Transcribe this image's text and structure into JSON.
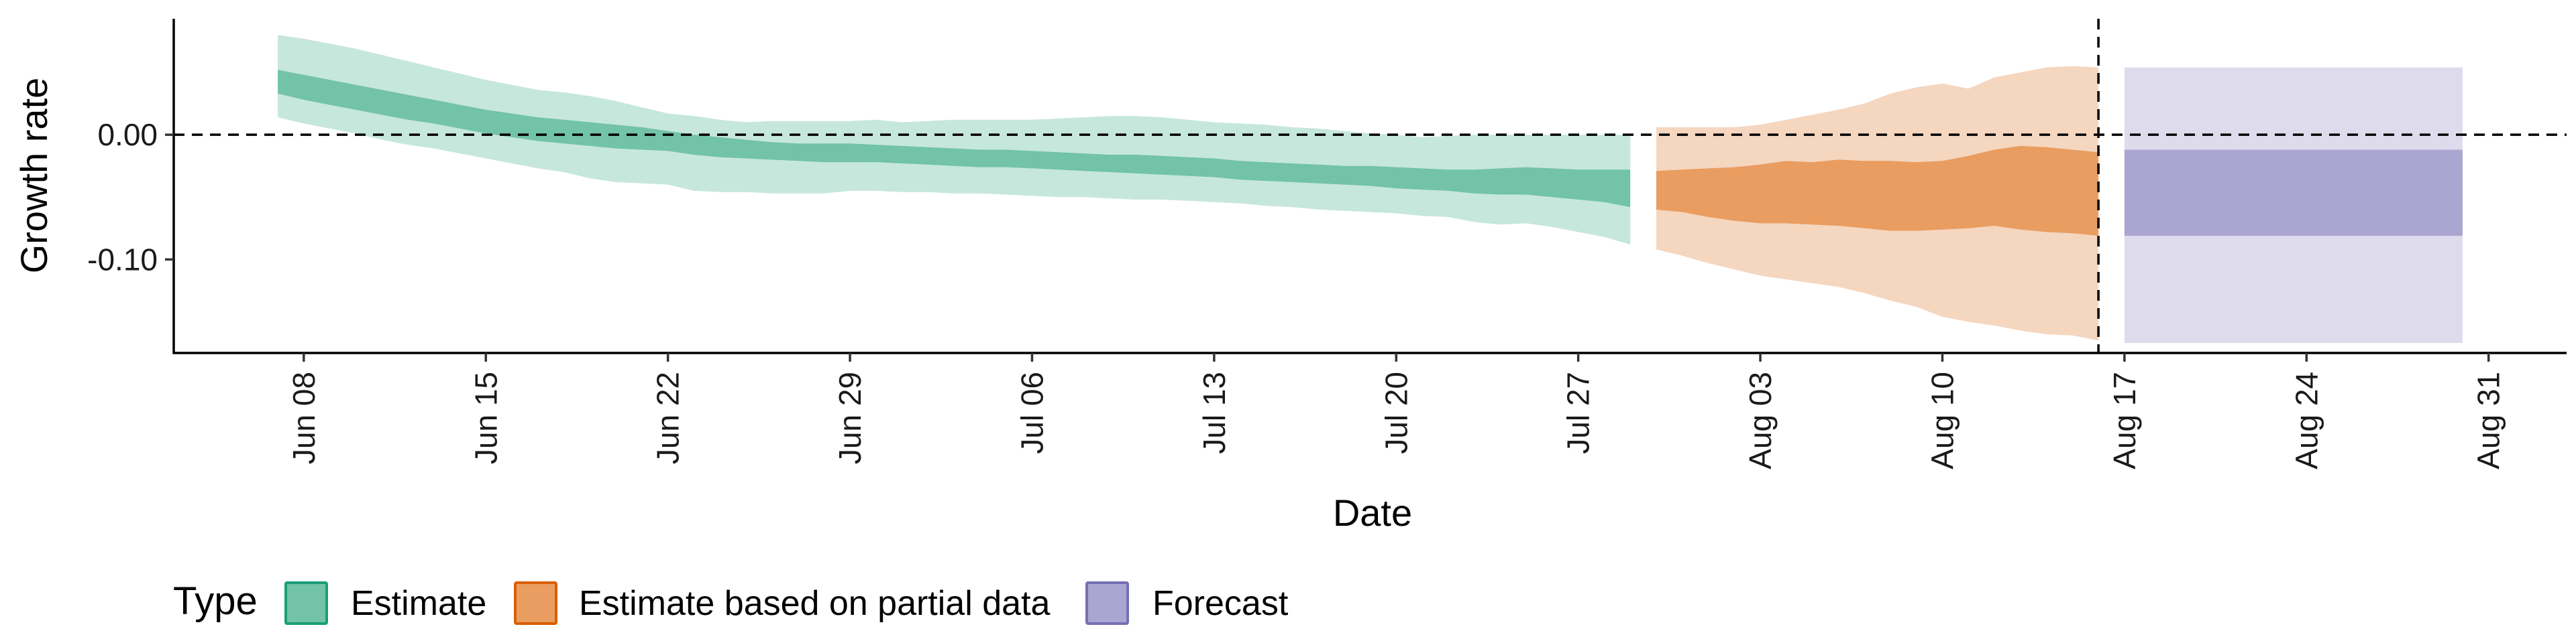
{
  "chart_data": {
    "type": "area",
    "xlabel": "Date",
    "ylabel": "Growth rate",
    "ylim": [
      -0.175,
      0.093
    ],
    "yticks": [
      {
        "value": 0.0,
        "label": "0.00"
      },
      {
        "value": -0.1,
        "label": "-0.10"
      }
    ],
    "xlim": [
      "2020-06-03",
      "2020-09-03"
    ],
    "xticks": [
      {
        "date": "2020-06-08",
        "label": "Jun 08"
      },
      {
        "date": "2020-06-15",
        "label": "Jun 15"
      },
      {
        "date": "2020-06-22",
        "label": "Jun 22"
      },
      {
        "date": "2020-06-29",
        "label": "Jun 29"
      },
      {
        "date": "2020-07-06",
        "label": "Jul 06"
      },
      {
        "date": "2020-07-13",
        "label": "Jul 13"
      },
      {
        "date": "2020-07-20",
        "label": "Jul 20"
      },
      {
        "date": "2020-07-27",
        "label": "Jul 27"
      },
      {
        "date": "2020-08-03",
        "label": "Aug 03"
      },
      {
        "date": "2020-08-10",
        "label": "Aug 10"
      },
      {
        "date": "2020-08-17",
        "label": "Aug 17"
      },
      {
        "date": "2020-08-24",
        "label": "Aug 24"
      },
      {
        "date": "2020-08-31",
        "label": "Aug 31"
      }
    ],
    "reference_lines": {
      "hline_y": 0.0,
      "vline_date": "2020-08-16"
    },
    "legend": {
      "title": "Type",
      "position": "bottom",
      "entries": [
        {
          "label": "Estimate",
          "fill": "#72c3a7",
          "border": "#1b9e77"
        },
        {
          "label": "Estimate based on partial data",
          "fill": "#e99d60",
          "border": "#d95f02"
        },
        {
          "label": "Forecast",
          "fill": "#aaa6d1",
          "border": "#7570b3"
        }
      ]
    },
    "series": [
      {
        "name": "Estimate",
        "color_inner": "#72c3a7",
        "color_outer": "#c6e7dc",
        "dates": [
          "2020-06-07",
          "2020-06-08",
          "2020-06-09",
          "2020-06-10",
          "2020-06-11",
          "2020-06-12",
          "2020-06-13",
          "2020-06-14",
          "2020-06-15",
          "2020-06-16",
          "2020-06-17",
          "2020-06-18",
          "2020-06-19",
          "2020-06-20",
          "2020-06-21",
          "2020-06-22",
          "2020-06-23",
          "2020-06-24",
          "2020-06-25",
          "2020-06-26",
          "2020-06-27",
          "2020-06-28",
          "2020-06-29",
          "2020-06-30",
          "2020-07-01",
          "2020-07-02",
          "2020-07-03",
          "2020-07-04",
          "2020-07-05",
          "2020-07-06",
          "2020-07-07",
          "2020-07-08",
          "2020-07-09",
          "2020-07-10",
          "2020-07-11",
          "2020-07-12",
          "2020-07-13",
          "2020-07-14",
          "2020-07-15",
          "2020-07-16",
          "2020-07-17",
          "2020-07-18",
          "2020-07-19",
          "2020-07-20",
          "2020-07-21",
          "2020-07-22",
          "2020-07-23",
          "2020-07-24",
          "2020-07-25",
          "2020-07-26",
          "2020-07-27",
          "2020-07-28",
          "2020-07-29"
        ],
        "lower90": [
          0.014,
          0.009,
          0.005,
          0.001,
          -0.004,
          -0.008,
          -0.011,
          -0.015,
          -0.019,
          -0.023,
          -0.027,
          -0.03,
          -0.035,
          -0.038,
          -0.039,
          -0.04,
          -0.045,
          -0.046,
          -0.046,
          -0.047,
          -0.047,
          -0.047,
          -0.045,
          -0.045,
          -0.046,
          -0.046,
          -0.047,
          -0.047,
          -0.048,
          -0.049,
          -0.05,
          -0.05,
          -0.051,
          -0.052,
          -0.052,
          -0.053,
          -0.054,
          -0.055,
          -0.057,
          -0.058,
          -0.06,
          -0.061,
          -0.062,
          -0.063,
          -0.065,
          -0.066,
          -0.07,
          -0.072,
          -0.071,
          -0.074,
          -0.078,
          -0.082,
          -0.088
        ],
        "lower50": [
          0.033,
          0.028,
          0.024,
          0.02,
          0.016,
          0.012,
          0.009,
          0.005,
          0.001,
          -0.002,
          -0.005,
          -0.007,
          -0.009,
          -0.011,
          -0.012,
          -0.013,
          -0.016,
          -0.018,
          -0.019,
          -0.02,
          -0.021,
          -0.022,
          -0.022,
          -0.022,
          -0.023,
          -0.024,
          -0.025,
          -0.026,
          -0.026,
          -0.027,
          -0.028,
          -0.029,
          -0.03,
          -0.031,
          -0.032,
          -0.033,
          -0.034,
          -0.036,
          -0.037,
          -0.038,
          -0.039,
          -0.04,
          -0.041,
          -0.043,
          -0.044,
          -0.045,
          -0.047,
          -0.048,
          -0.048,
          -0.05,
          -0.052,
          -0.054,
          -0.058
        ],
        "upper50": [
          0.052,
          0.048,
          0.044,
          0.04,
          0.036,
          0.032,
          0.028,
          0.024,
          0.02,
          0.017,
          0.014,
          0.012,
          0.01,
          0.008,
          0.006,
          0.003,
          0.0,
          -0.002,
          -0.004,
          -0.006,
          -0.007,
          -0.007,
          -0.007,
          -0.008,
          -0.009,
          -0.01,
          -0.011,
          -0.012,
          -0.012,
          -0.013,
          -0.014,
          -0.015,
          -0.016,
          -0.016,
          -0.017,
          -0.018,
          -0.019,
          -0.021,
          -0.022,
          -0.023,
          -0.024,
          -0.025,
          -0.025,
          -0.026,
          -0.027,
          -0.028,
          -0.028,
          -0.027,
          -0.026,
          -0.027,
          -0.028,
          -0.028,
          -0.028
        ],
        "upper90": [
          0.08,
          0.077,
          0.073,
          0.069,
          0.064,
          0.059,
          0.054,
          0.049,
          0.044,
          0.04,
          0.036,
          0.034,
          0.031,
          0.027,
          0.022,
          0.017,
          0.015,
          0.012,
          0.01,
          0.011,
          0.011,
          0.011,
          0.011,
          0.012,
          0.01,
          0.011,
          0.012,
          0.012,
          0.012,
          0.012,
          0.013,
          0.014,
          0.015,
          0.015,
          0.014,
          0.012,
          0.01,
          0.009,
          0.008,
          0.006,
          0.005,
          0.003,
          0.001,
          0.0,
          -0.002,
          -0.001,
          0.0,
          0.0,
          0.0,
          0.0,
          0.0,
          0.0,
          0.0
        ]
      },
      {
        "name": "Estimate based on partial data",
        "color_inner": "#e99d60",
        "color_outer": "#f5d6bf",
        "dates": [
          "2020-07-30",
          "2020-07-31",
          "2020-08-01",
          "2020-08-02",
          "2020-08-03",
          "2020-08-04",
          "2020-08-05",
          "2020-08-06",
          "2020-08-07",
          "2020-08-08",
          "2020-08-09",
          "2020-08-10",
          "2020-08-11",
          "2020-08-12",
          "2020-08-13",
          "2020-08-14",
          "2020-08-15",
          "2020-08-16"
        ],
        "lower90": [
          -0.092,
          -0.097,
          -0.103,
          -0.108,
          -0.113,
          -0.116,
          -0.119,
          -0.122,
          -0.127,
          -0.133,
          -0.138,
          -0.146,
          -0.15,
          -0.153,
          -0.157,
          -0.16,
          -0.161,
          -0.165
        ],
        "lower50": [
          -0.06,
          -0.062,
          -0.066,
          -0.069,
          -0.071,
          -0.071,
          -0.072,
          -0.073,
          -0.075,
          -0.077,
          -0.077,
          -0.076,
          -0.075,
          -0.073,
          -0.076,
          -0.078,
          -0.079,
          -0.081
        ],
        "upper50": [
          -0.029,
          -0.028,
          -0.027,
          -0.026,
          -0.024,
          -0.021,
          -0.022,
          -0.02,
          -0.021,
          -0.021,
          -0.022,
          -0.021,
          -0.017,
          -0.012,
          -0.009,
          -0.01,
          -0.012,
          -0.014
        ],
        "upper90": [
          0.006,
          0.006,
          0.006,
          0.006,
          0.008,
          0.012,
          0.016,
          0.02,
          0.025,
          0.033,
          0.038,
          0.041,
          0.037,
          0.046,
          0.05,
          0.054,
          0.055,
          0.054
        ]
      },
      {
        "name": "Forecast",
        "color_inner": "#aaa6d1",
        "color_outer": "#dedcec",
        "dates": [
          "2020-08-17",
          "2020-08-30"
        ],
        "lower90": [
          -0.167,
          -0.167
        ],
        "lower50": [
          -0.081,
          -0.081
        ],
        "upper50": [
          -0.012,
          -0.012
        ],
        "upper90": [
          0.054,
          0.054
        ]
      }
    ]
  }
}
